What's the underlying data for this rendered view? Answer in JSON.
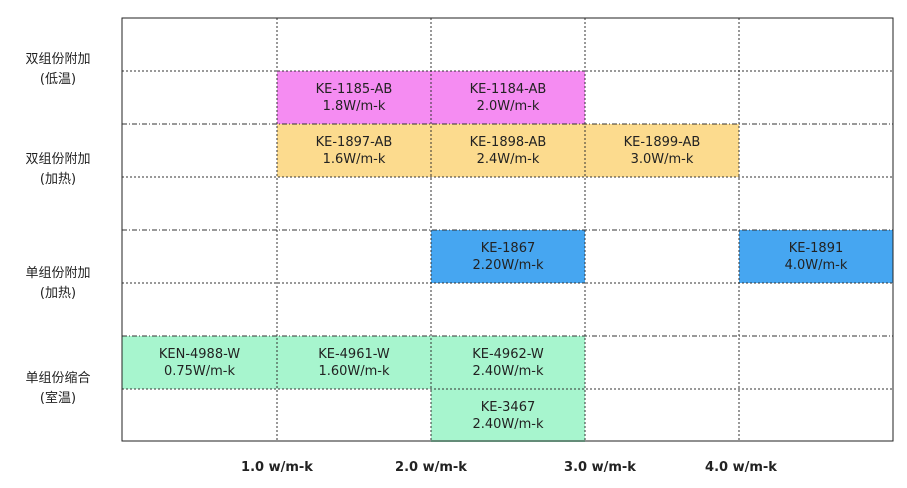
{
  "chart_data": {
    "type": "table",
    "rows": [
      {
        "line1": "双组份附加",
        "line2": "(低温)"
      },
      {
        "line1": "双组份附加",
        "line2": "(加热)"
      },
      {
        "line1": "单组份附加",
        "line2": "(加热)"
      },
      {
        "line1": "单组份缩合",
        "line2": "(室温)"
      }
    ],
    "x_ticks": [
      "1.0 w/m-k",
      "2.0 w/m-k",
      "3.0 w/m-k",
      "4.0 w/m-k"
    ],
    "products": [
      {
        "name": "KE-1185-AB",
        "value": "1.8W/m-k",
        "row": 0,
        "sub": 1,
        "col": 1,
        "color": "#f58cf2"
      },
      {
        "name": "KE-1184-AB",
        "value": "2.0W/m-k",
        "row": 0,
        "sub": 1,
        "col": 2,
        "color": "#f58cf2"
      },
      {
        "name": "KE-1897-AB",
        "value": "1.6W/m-k",
        "row": 1,
        "sub": 0,
        "col": 1,
        "color": "#fcdb8e"
      },
      {
        "name": "KE-1898-AB",
        "value": "2.4W/m-k",
        "row": 1,
        "sub": 0,
        "col": 2,
        "color": "#fcdb8e"
      },
      {
        "name": "KE-1899-AB",
        "value": "3.0W/m-k",
        "row": 1,
        "sub": 0,
        "col": 3,
        "color": "#fcdb8e"
      },
      {
        "name": "KE-1867",
        "value": "2.20W/m-k",
        "row": 2,
        "sub": 0,
        "col": 2,
        "color": "#46a6f1"
      },
      {
        "name": "KE-1891",
        "value": "4.0W/m-k",
        "row": 2,
        "sub": 0,
        "col": 4,
        "color": "#46a6f1"
      },
      {
        "name": "KEN-4988-W",
        "value": "0.75W/m-k",
        "row": 3,
        "sub": 0,
        "col": 0,
        "color": "#a7f5ce"
      },
      {
        "name": "KE-4961-W",
        "value": "1.60W/m-k",
        "row": 3,
        "sub": 0,
        "col": 1,
        "color": "#a7f5ce"
      },
      {
        "name": "KE-4962-W",
        "value": "2.40W/m-k",
        "row": 3,
        "sub": 0,
        "col": 2,
        "color": "#a7f5ce"
      },
      {
        "name": "KE-3467",
        "value": "2.40W/m-k",
        "row": 3,
        "sub": 1,
        "col": 2,
        "color": "#a7f5ce"
      }
    ]
  }
}
